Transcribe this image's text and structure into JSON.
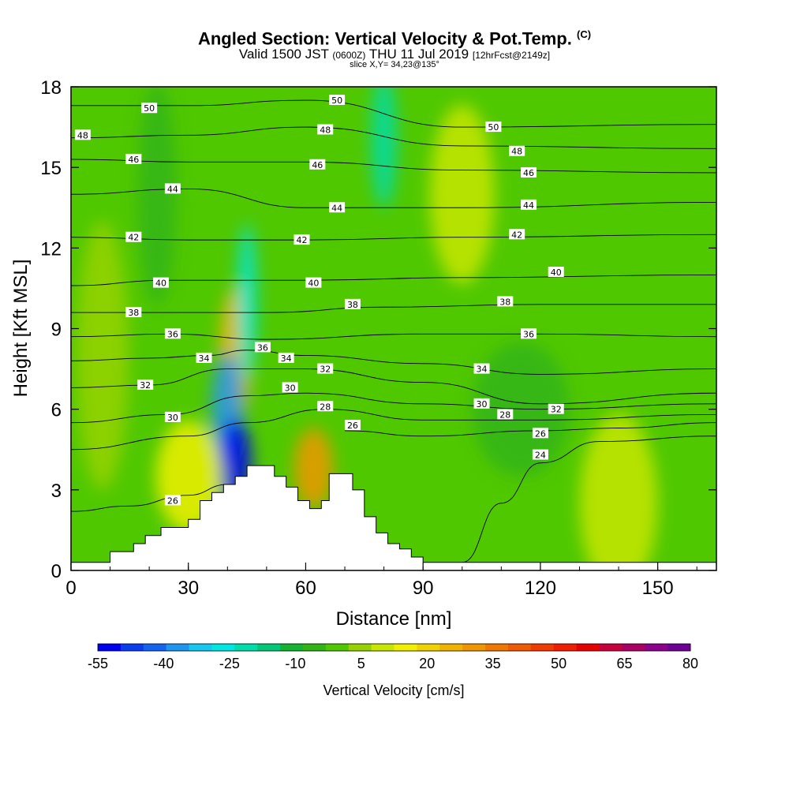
{
  "chart_data": {
    "type": "heatmap",
    "title": "Angled Section: Vertical Velocity & Pot.Temp.",
    "title_unit": "(C)",
    "subtitle_valid": "Valid 1500 JST",
    "subtitle_utc": "(0600Z)",
    "subtitle_date": "THU 11 Jul 2019",
    "subtitle_fcst": "[12hrFcst@2149z]",
    "slice": "slice X,Y= 34,23@135°",
    "xlabel": "Distance [nm]",
    "ylabel": "Height [Kft MSL]",
    "xlim": [
      0,
      165
    ],
    "ylim": [
      0,
      18
    ],
    "xticks": [
      0,
      30,
      60,
      90,
      120,
      150
    ],
    "yticks": [
      0,
      3,
      6,
      9,
      12,
      15,
      18
    ],
    "colorbar": {
      "label": "Vertical Velocity [cm/s]",
      "tick_labels": [
        "-55",
        "-40",
        "-25",
        "-10",
        "5",
        "20",
        "35",
        "50",
        "65",
        "80"
      ],
      "colors": [
        "#0000f0",
        "#0a3cf0",
        "#1464f0",
        "#1e96f0",
        "#14c8f0",
        "#00e6e0",
        "#00dcaa",
        "#00c878",
        "#14b432",
        "#32b414",
        "#50c800",
        "#96d200",
        "#c8e600",
        "#f0f000",
        "#f0d200",
        "#f0b400",
        "#f09600",
        "#f07800",
        "#f05a00",
        "#f03c00",
        "#f01e00",
        "#e60000",
        "#c8003c",
        "#aa0064",
        "#8c008c",
        "#6e0096"
      ]
    },
    "terrain": [
      [
        0,
        0.3
      ],
      [
        10,
        0.3
      ],
      [
        10,
        0.7
      ],
      [
        16,
        0.7
      ],
      [
        16,
        1.0
      ],
      [
        19,
        1.0
      ],
      [
        19,
        1.3
      ],
      [
        23,
        1.3
      ],
      [
        23,
        1.6
      ],
      [
        30,
        1.6
      ],
      [
        30,
        1.9
      ],
      [
        33,
        1.9
      ],
      [
        33,
        2.6
      ],
      [
        36,
        2.6
      ],
      [
        36,
        2.9
      ],
      [
        39,
        2.9
      ],
      [
        39,
        3.2
      ],
      [
        42,
        3.2
      ],
      [
        42,
        3.5
      ],
      [
        45,
        3.5
      ],
      [
        45,
        3.9
      ],
      [
        52,
        3.9
      ],
      [
        52,
        3.5
      ],
      [
        55,
        3.5
      ],
      [
        55,
        3.1
      ],
      [
        58,
        3.1
      ],
      [
        58,
        2.6
      ],
      [
        61,
        2.6
      ],
      [
        61,
        2.3
      ],
      [
        64,
        2.3
      ],
      [
        64,
        2.6
      ],
      [
        66,
        2.6
      ],
      [
        66,
        3.6
      ],
      [
        72,
        3.6
      ],
      [
        72,
        3.0
      ],
      [
        75,
        3.0
      ],
      [
        75,
        2.0
      ],
      [
        78,
        2.0
      ],
      [
        78,
        1.4
      ],
      [
        81,
        1.4
      ],
      [
        81,
        1.0
      ],
      [
        84,
        1.0
      ],
      [
        84,
        0.8
      ],
      [
        87,
        0.8
      ],
      [
        87,
        0.5
      ],
      [
        90,
        0.5
      ],
      [
        90,
        0.3
      ],
      [
        165,
        0.3
      ]
    ],
    "fill_blobs": [
      {
        "x": 42,
        "y": 8,
        "w": 5,
        "h": 3,
        "vv": 25
      },
      {
        "x": 45,
        "y": 10,
        "w": 3,
        "h": 3.5,
        "vv": -25
      },
      {
        "x": 40,
        "y": 6,
        "w": 5,
        "h": 2.5,
        "vv": -35
      },
      {
        "x": 42,
        "y": 4,
        "w": 5,
        "h": 2,
        "vv": -50
      },
      {
        "x": 62,
        "y": 3.8,
        "w": 6,
        "h": 1.8,
        "vv": 30
      },
      {
        "x": 30,
        "y": 3.5,
        "w": 10,
        "h": 2.5,
        "vv": 15
      },
      {
        "x": 140,
        "y": 2.5,
        "w": 12,
        "h": 4,
        "vv": 10
      },
      {
        "x": 22,
        "y": 14,
        "w": 6,
        "h": 5,
        "vv": -5
      },
      {
        "x": 100,
        "y": 14,
        "w": 10,
        "h": 4,
        "vv": 8
      },
      {
        "x": 80,
        "y": 16,
        "w": 4,
        "h": 3,
        "vv": -20
      },
      {
        "x": 115,
        "y": 6,
        "w": 15,
        "h": 3,
        "vv": -8
      },
      {
        "x": 8,
        "y": 8,
        "w": 8,
        "h": 6,
        "vv": 6
      }
    ],
    "isentropes": [
      {
        "theta": "24",
        "points": [
          [
            100,
            0.3
          ],
          [
            110,
            2.5
          ],
          [
            120,
            4.0
          ],
          [
            135,
            4.8
          ],
          [
            165,
            5.0
          ]
        ]
      },
      {
        "theta": "26",
        "points": [
          [
            0,
            2.2
          ],
          [
            15,
            2.4
          ],
          [
            30,
            2.8
          ],
          [
            40,
            3.2
          ]
        ]
      },
      {
        "theta": "26b",
        "points": [
          [
            70,
            5.2
          ],
          [
            90,
            5.0
          ],
          [
            120,
            5.2
          ],
          [
            140,
            5.3
          ],
          [
            165,
            5.5
          ]
        ]
      },
      {
        "theta": "28",
        "points": [
          [
            0,
            4.5
          ],
          [
            30,
            5.0
          ],
          [
            45,
            5.5
          ],
          [
            65,
            6.0
          ],
          [
            90,
            5.6
          ],
          [
            120,
            5.6
          ],
          [
            165,
            5.8
          ]
        ]
      },
      {
        "theta": "30",
        "points": [
          [
            0,
            5.5
          ],
          [
            25,
            5.8
          ],
          [
            45,
            6.5
          ],
          [
            60,
            6.6
          ],
          [
            90,
            6.2
          ],
          [
            120,
            6.0
          ],
          [
            165,
            6.2
          ]
        ]
      },
      {
        "theta": "32",
        "points": [
          [
            0,
            6.8
          ],
          [
            20,
            6.9
          ],
          [
            40,
            7.5
          ],
          [
            60,
            7.5
          ],
          [
            90,
            7.0
          ],
          [
            120,
            6.2
          ],
          [
            165,
            6.6
          ]
        ]
      },
      {
        "theta": "34",
        "points": [
          [
            0,
            7.8
          ],
          [
            20,
            7.9
          ],
          [
            35,
            8.0
          ],
          [
            45,
            8.2
          ],
          [
            60,
            8.0
          ],
          [
            90,
            7.7
          ],
          [
            120,
            7.3
          ],
          [
            165,
            7.5
          ]
        ]
      },
      {
        "theta": "36",
        "points": [
          [
            0,
            8.7
          ],
          [
            25,
            8.8
          ],
          [
            50,
            8.6
          ],
          [
            90,
            8.8
          ],
          [
            120,
            8.8
          ],
          [
            165,
            8.7
          ]
        ]
      },
      {
        "theta": "38",
        "points": [
          [
            0,
            9.6
          ],
          [
            20,
            9.6
          ],
          [
            50,
            9.6
          ],
          [
            80,
            9.8
          ],
          [
            120,
            9.9
          ],
          [
            165,
            9.9
          ]
        ]
      },
      {
        "theta": "40",
        "points": [
          [
            0,
            10.6
          ],
          [
            25,
            10.8
          ],
          [
            60,
            10.8
          ],
          [
            100,
            10.9
          ],
          [
            165,
            11.0
          ]
        ]
      },
      {
        "theta": "42",
        "points": [
          [
            0,
            12.4
          ],
          [
            30,
            12.3
          ],
          [
            60,
            12.3
          ],
          [
            100,
            12.4
          ],
          [
            165,
            12.5
          ]
        ]
      },
      {
        "theta": "44",
        "points": [
          [
            0,
            14.0
          ],
          [
            30,
            14.2
          ],
          [
            60,
            13.5
          ],
          [
            100,
            13.5
          ],
          [
            165,
            13.7
          ]
        ]
      },
      {
        "theta": "46",
        "points": [
          [
            0,
            15.3
          ],
          [
            30,
            15.2
          ],
          [
            60,
            15.2
          ],
          [
            100,
            14.9
          ],
          [
            165,
            14.8
          ]
        ]
      },
      {
        "theta": "48",
        "points": [
          [
            0,
            16.1
          ],
          [
            30,
            16.2
          ],
          [
            60,
            16.5
          ],
          [
            100,
            15.8
          ],
          [
            165,
            15.7
          ]
        ]
      },
      {
        "theta": "50",
        "points": [
          [
            0,
            17.3
          ],
          [
            30,
            17.3
          ],
          [
            60,
            17.5
          ],
          [
            100,
            16.5
          ],
          [
            165,
            16.6
          ]
        ]
      }
    ],
    "contour_labels": [
      {
        "text": "50",
        "x": 20,
        "y": 17.2
      },
      {
        "text": "48",
        "x": 3,
        "y": 16.2
      },
      {
        "text": "46",
        "x": 16,
        "y": 15.3
      },
      {
        "text": "44",
        "x": 26,
        "y": 14.2
      },
      {
        "text": "42",
        "x": 16,
        "y": 12.4
      },
      {
        "text": "40",
        "x": 23,
        "y": 10.7
      },
      {
        "text": "38",
        "x": 16,
        "y": 9.6
      },
      {
        "text": "36",
        "x": 26,
        "y": 8.8
      },
      {
        "text": "34",
        "x": 34,
        "y": 7.9
      },
      {
        "text": "32",
        "x": 19,
        "y": 6.9
      },
      {
        "text": "30",
        "x": 26,
        "y": 5.7
      },
      {
        "text": "26",
        "x": 26,
        "y": 2.6
      },
      {
        "text": "50",
        "x": 68,
        "y": 17.5
      },
      {
        "text": "48",
        "x": 65,
        "y": 16.4
      },
      {
        "text": "46",
        "x": 63,
        "y": 15.1
      },
      {
        "text": "44",
        "x": 68,
        "y": 13.5
      },
      {
        "text": "42",
        "x": 59,
        "y": 12.3
      },
      {
        "text": "40",
        "x": 62,
        "y": 10.7
      },
      {
        "text": "38",
        "x": 72,
        "y": 9.9
      },
      {
        "text": "36",
        "x": 49,
        "y": 8.3
      },
      {
        "text": "34",
        "x": 55,
        "y": 7.9
      },
      {
        "text": "32",
        "x": 65,
        "y": 7.5
      },
      {
        "text": "30",
        "x": 56,
        "y": 6.8
      },
      {
        "text": "28",
        "x": 65,
        "y": 6.1
      },
      {
        "text": "26",
        "x": 72,
        "y": 5.4
      },
      {
        "text": "50",
        "x": 108,
        "y": 16.5
      },
      {
        "text": "48",
        "x": 114,
        "y": 15.6
      },
      {
        "text": "46",
        "x": 117,
        "y": 14.8
      },
      {
        "text": "44",
        "x": 117,
        "y": 13.6
      },
      {
        "text": "42",
        "x": 114,
        "y": 12.5
      },
      {
        "text": "40",
        "x": 124,
        "y": 11.1
      },
      {
        "text": "38",
        "x": 111,
        "y": 10.0
      },
      {
        "text": "36",
        "x": 117,
        "y": 8.8
      },
      {
        "text": "34",
        "x": 105,
        "y": 7.5
      },
      {
        "text": "30",
        "x": 105,
        "y": 6.2
      },
      {
        "text": "28",
        "x": 111,
        "y": 5.8
      },
      {
        "text": "32",
        "x": 124,
        "y": 6.0
      },
      {
        "text": "26",
        "x": 120,
        "y": 5.1
      },
      {
        "text": "24",
        "x": 120,
        "y": 4.3
      }
    ]
  }
}
